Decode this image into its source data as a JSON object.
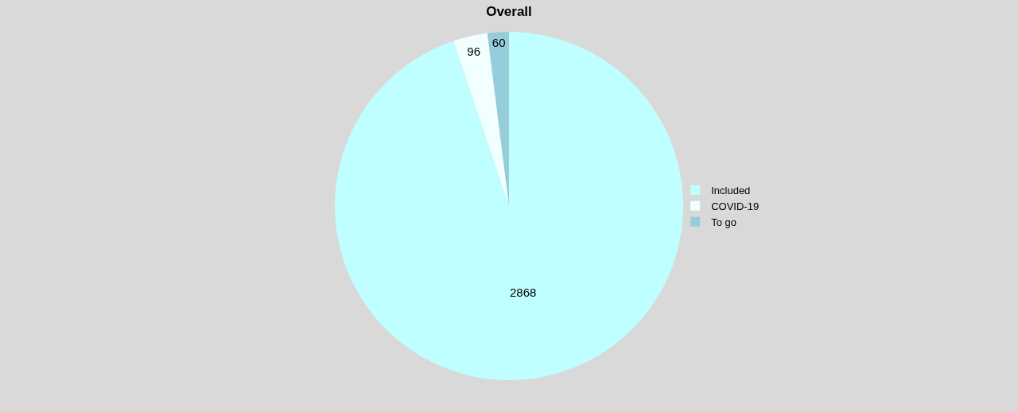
{
  "chart_data": {
    "type": "pie",
    "title": "Overall",
    "categories": [
      "Included",
      "COVID-19",
      "To go"
    ],
    "values": [
      2868,
      96,
      60
    ],
    "colors": [
      "#bfffff",
      "#f2ffff",
      "#96cddb"
    ],
    "data_labels": true,
    "legend": "right"
  }
}
